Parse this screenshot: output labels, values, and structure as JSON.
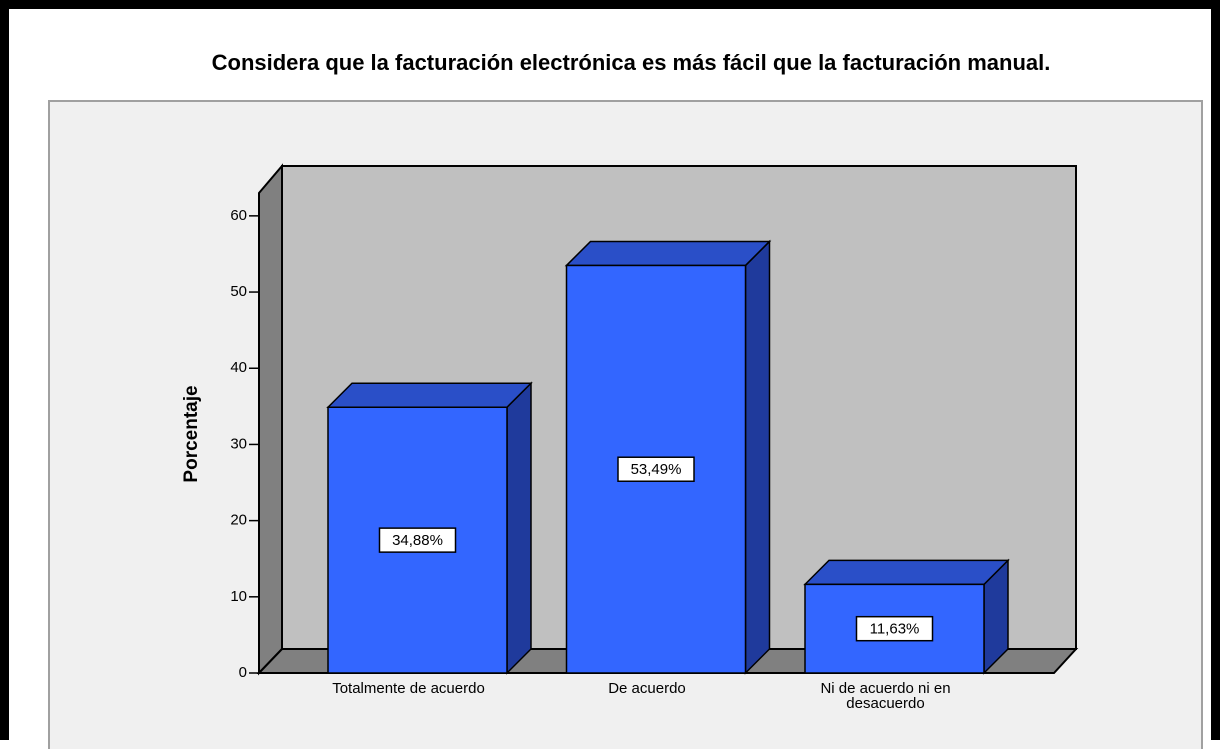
{
  "chart_data": {
    "type": "bar3d",
    "title": "Considera que la facturación electrónica es más fácil que la facturación manual.",
    "y_label": "Porcentaje",
    "categories": [
      "Totalmente de acuerdo",
      "De acuerdo",
      "Ni de acuerdo ni en desacuerdo"
    ],
    "values": [
      34.88,
      53.49,
      11.63
    ],
    "value_labels": [
      "34,88%",
      "53,49%",
      "11,63%"
    ],
    "color": "#3366ff",
    "ylim": [
      0,
      63
    ],
    "yticks": [
      0,
      10,
      20,
      30,
      40,
      50,
      60
    ],
    "grid": false
  }
}
